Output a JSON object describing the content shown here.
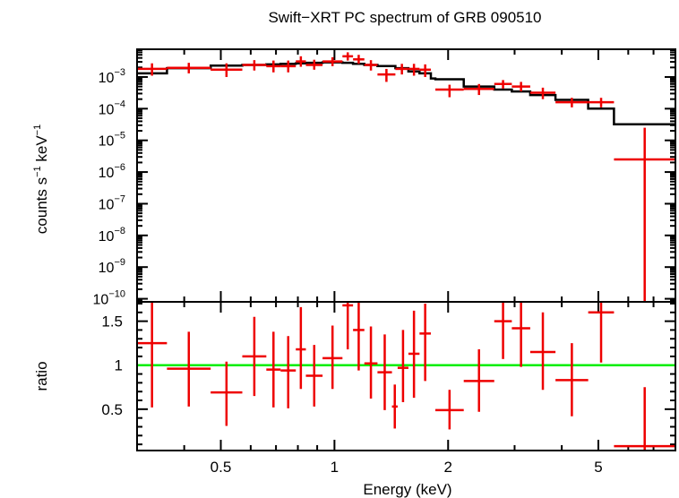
{
  "chart_data": [
    {
      "type": "line",
      "title": "Swift−XRT PC spectrum of GRB 090510",
      "ylabel_parts": [
        "counts s",
        "−1",
        " keV",
        "−1"
      ],
      "xscale": "log",
      "yscale": "log",
      "xlim": [
        0.3,
        8.0
      ],
      "ylim": [
        8e-11,
        0.0075
      ],
      "xticks_major": [
        0.5,
        1,
        2,
        5
      ],
      "xticks_minor": [
        0.3,
        0.4,
        0.6,
        0.7,
        0.8,
        0.9,
        3,
        4,
        6,
        7,
        8
      ],
      "ytick_labels": [
        {
          "value": 0.001,
          "mant": "10",
          "exp": "−3"
        },
        {
          "value": 0.0001,
          "mant": "10",
          "exp": "−4"
        },
        {
          "value": 1e-05,
          "mant": "10",
          "exp": "−5"
        },
        {
          "value": 1e-06,
          "mant": "10",
          "exp": "−6"
        },
        {
          "value": 1e-07,
          "mant": "10",
          "exp": "−7"
        },
        {
          "value": 1e-08,
          "mant": "10",
          "exp": "−8"
        },
        {
          "value": 1e-09,
          "mant": "10",
          "exp": "−9"
        },
        {
          "value": 1e-10,
          "mant": "10",
          "exp": "−10"
        }
      ],
      "data_series": {
        "name": "data",
        "color": "#ee0000",
        "points": [
          {
            "xlo": 0.3,
            "xhi": 0.36,
            "y": 0.0018,
            "ylo": 0.0011,
            "yhi": 0.0027
          },
          {
            "xlo": 0.36,
            "xhi": 0.47,
            "y": 0.00195,
            "ylo": 0.0013,
            "yhi": 0.0028
          },
          {
            "xlo": 0.47,
            "xhi": 0.57,
            "y": 0.0017,
            "ylo": 0.001,
            "yhi": 0.0027
          },
          {
            "xlo": 0.57,
            "xhi": 0.66,
            "y": 0.0024,
            "ylo": 0.0016,
            "yhi": 0.0034
          },
          {
            "xlo": 0.66,
            "xhi": 0.72,
            "y": 0.0022,
            "ylo": 0.0014,
            "yhi": 0.0033
          },
          {
            "xlo": 0.72,
            "xhi": 0.79,
            "y": 0.0022,
            "ylo": 0.0014,
            "yhi": 0.0033
          },
          {
            "xlo": 0.79,
            "xhi": 0.84,
            "y": 0.0031,
            "ylo": 0.0021,
            "yhi": 0.0045
          },
          {
            "xlo": 0.84,
            "xhi": 0.93,
            "y": 0.0024,
            "ylo": 0.0017,
            "yhi": 0.0035
          },
          {
            "xlo": 0.93,
            "xhi": 1.05,
            "y": 0.0031,
            "ylo": 0.0022,
            "yhi": 0.0042
          },
          {
            "xlo": 1.05,
            "xhi": 1.12,
            "y": 0.0045,
            "ylo": 0.0033,
            "yhi": 0.006
          },
          {
            "xlo": 1.12,
            "xhi": 1.2,
            "y": 0.0036,
            "ylo": 0.0026,
            "yhi": 0.005
          },
          {
            "xlo": 1.2,
            "xhi": 1.3,
            "y": 0.0024,
            "ylo": 0.0016,
            "yhi": 0.0034
          },
          {
            "xlo": 1.3,
            "xhi": 1.45,
            "y": 0.0012,
            "ylo": 0.0007,
            "yhi": 0.0018
          },
          {
            "xlo": 1.45,
            "xhi": 1.57,
            "y": 0.0018,
            "ylo": 0.0012,
            "yhi": 0.0026
          },
          {
            "xlo": 1.57,
            "xhi": 1.68,
            "y": 0.0018,
            "ylo": 0.0011,
            "yhi": 0.0026
          },
          {
            "xlo": 1.68,
            "xhi": 1.8,
            "y": 0.0017,
            "ylo": 0.001,
            "yhi": 0.0025
          },
          {
            "xlo": 1.85,
            "xhi": 2.2,
            "y": 0.0004,
            "ylo": 0.00023,
            "yhi": 0.00057
          },
          {
            "xlo": 2.2,
            "xhi": 2.65,
            "y": 0.00042,
            "ylo": 0.00027,
            "yhi": 0.0006
          },
          {
            "xlo": 2.65,
            "xhi": 2.95,
            "y": 0.0006,
            "ylo": 0.00043,
            "yhi": 0.0008
          },
          {
            "xlo": 2.95,
            "xhi": 3.3,
            "y": 0.0005,
            "ylo": 0.00035,
            "yhi": 0.0007
          },
          {
            "xlo": 3.3,
            "xhi": 3.85,
            "y": 0.00032,
            "ylo": 0.0002,
            "yhi": 0.00046
          },
          {
            "xlo": 3.85,
            "xhi": 4.7,
            "y": 0.00016,
            "ylo": 0.00011,
            "yhi": 0.00022
          },
          {
            "xlo": 4.7,
            "xhi": 5.5,
            "y": 0.00016,
            "ylo": 0.00011,
            "yhi": 0.00022
          },
          {
            "xlo": 5.5,
            "xhi": 8.0,
            "y": 2.5e-06,
            "ylo": 8e-11,
            "yhi": 2.5e-05
          }
        ]
      },
      "model_series": {
        "name": "model",
        "color": "#000000",
        "steps": [
          {
            "xlo": 0.3,
            "xhi": 0.36,
            "y": 0.0013
          },
          {
            "xlo": 0.36,
            "xhi": 0.47,
            "y": 0.0019
          },
          {
            "xlo": 0.47,
            "xhi": 0.57,
            "y": 0.0023
          },
          {
            "xlo": 0.57,
            "xhi": 0.66,
            "y": 0.0024
          },
          {
            "xlo": 0.66,
            "xhi": 0.72,
            "y": 0.0025
          },
          {
            "xlo": 0.72,
            "xhi": 0.79,
            "y": 0.0026
          },
          {
            "xlo": 0.79,
            "xhi": 0.84,
            "y": 0.0027
          },
          {
            "xlo": 0.84,
            "xhi": 0.93,
            "y": 0.0028
          },
          {
            "xlo": 0.93,
            "xhi": 1.05,
            "y": 0.0029
          },
          {
            "xlo": 1.05,
            "xhi": 1.12,
            "y": 0.0028
          },
          {
            "xlo": 1.12,
            "xhi": 1.2,
            "y": 0.0026
          },
          {
            "xlo": 1.2,
            "xhi": 1.3,
            "y": 0.0024
          },
          {
            "xlo": 1.3,
            "xhi": 1.45,
            "y": 0.0022
          },
          {
            "xlo": 1.45,
            "xhi": 1.57,
            "y": 0.0019
          },
          {
            "xlo": 1.57,
            "xhi": 1.68,
            "y": 0.0015
          },
          {
            "xlo": 1.68,
            "xhi": 1.8,
            "y": 0.0013
          },
          {
            "xlo": 1.8,
            "xhi": 1.85,
            "y": 0.0009
          },
          {
            "xlo": 1.85,
            "xhi": 2.2,
            "y": 0.00085
          },
          {
            "xlo": 2.2,
            "xhi": 2.65,
            "y": 0.0005
          },
          {
            "xlo": 2.65,
            "xhi": 2.95,
            "y": 0.0004
          },
          {
            "xlo": 2.95,
            "xhi": 3.3,
            "y": 0.00035
          },
          {
            "xlo": 3.3,
            "xhi": 3.85,
            "y": 0.00027
          },
          {
            "xlo": 3.85,
            "xhi": 4.7,
            "y": 0.00019
          },
          {
            "xlo": 4.7,
            "xhi": 5.5,
            "y": 0.0001
          },
          {
            "xlo": 5.5,
            "xhi": 8.0,
            "y": 3.2e-05
          }
        ]
      }
    },
    {
      "type": "scatter",
      "xlabel": "Energy (keV)",
      "ylabel": "ratio",
      "xscale": "log",
      "xlim": [
        0.3,
        8.0
      ],
      "ylim": [
        0.03,
        1.72
      ],
      "xtick_labels": [
        {
          "value": 0.5,
          "label": "0.5"
        },
        {
          "value": 1,
          "label": "1"
        },
        {
          "value": 2,
          "label": "2"
        },
        {
          "value": 5,
          "label": "5"
        }
      ],
      "xticks_minor": [
        0.3,
        0.4,
        0.6,
        0.7,
        0.8,
        0.9,
        3,
        4,
        6,
        7,
        8
      ],
      "yticks_major": [
        {
          "value": 0.5,
          "label": "0.5"
        },
        {
          "value": 1,
          "label": "1"
        },
        {
          "value": 1.5,
          "label": "1.5"
        }
      ],
      "yticks_minor": [
        0.1,
        0.2,
        0.3,
        0.4,
        0.6,
        0.7,
        0.8,
        0.9,
        1.1,
        1.2,
        1.3,
        1.4,
        1.6,
        1.7
      ],
      "reference_line": {
        "y": 1,
        "color": "#00ee00"
      },
      "ratio_series": {
        "name": "ratio",
        "color": "#ee0000",
        "points": [
          {
            "xlo": 0.3,
            "xhi": 0.36,
            "y": 1.25,
            "ylo": 0.52,
            "yhi": 1.72
          },
          {
            "xlo": 0.36,
            "xhi": 0.47,
            "y": 0.96,
            "ylo": 0.53,
            "yhi": 1.38
          },
          {
            "xlo": 0.47,
            "xhi": 0.57,
            "y": 0.69,
            "ylo": 0.31,
            "yhi": 1.04
          },
          {
            "xlo": 0.57,
            "xhi": 0.66,
            "y": 1.1,
            "ylo": 0.65,
            "yhi": 1.55
          },
          {
            "xlo": 0.66,
            "xhi": 0.72,
            "y": 0.95,
            "ylo": 0.52,
            "yhi": 1.38
          },
          {
            "xlo": 0.72,
            "xhi": 0.79,
            "y": 0.94,
            "ylo": 0.51,
            "yhi": 1.33
          },
          {
            "xlo": 0.79,
            "xhi": 0.84,
            "y": 1.18,
            "ylo": 0.73,
            "yhi": 1.66
          },
          {
            "xlo": 0.84,
            "xhi": 0.93,
            "y": 0.88,
            "ylo": 0.53,
            "yhi": 1.23
          },
          {
            "xlo": 0.93,
            "xhi": 1.05,
            "y": 1.08,
            "ylo": 0.73,
            "yhi": 1.45
          },
          {
            "xlo": 1.05,
            "xhi": 1.12,
            "y": 1.68,
            "ylo": 1.18,
            "yhi": 1.72
          },
          {
            "xlo": 1.12,
            "xhi": 1.2,
            "y": 1.4,
            "ylo": 0.94,
            "yhi": 1.72
          },
          {
            "xlo": 1.2,
            "xhi": 1.3,
            "y": 1.02,
            "ylo": 0.62,
            "yhi": 1.44
          },
          {
            "xlo": 1.3,
            "xhi": 1.42,
            "y": 0.92,
            "ylo": 0.49,
            "yhi": 1.35
          },
          {
            "xlo": 1.42,
            "xhi": 1.47,
            "y": 0.53,
            "ylo": 0.28,
            "yhi": 0.78
          },
          {
            "xlo": 1.47,
            "xhi": 1.57,
            "y": 0.97,
            "ylo": 0.58,
            "yhi": 1.4
          },
          {
            "xlo": 1.57,
            "xhi": 1.68,
            "y": 1.13,
            "ylo": 0.63,
            "yhi": 1.62
          },
          {
            "xlo": 1.68,
            "xhi": 1.8,
            "y": 1.36,
            "ylo": 0.82,
            "yhi": 1.7
          },
          {
            "xlo": 1.85,
            "xhi": 2.2,
            "y": 0.49,
            "ylo": 0.27,
            "yhi": 0.72
          },
          {
            "xlo": 2.2,
            "xhi": 2.65,
            "y": 0.82,
            "ylo": 0.47,
            "yhi": 1.18
          },
          {
            "xlo": 2.65,
            "xhi": 2.95,
            "y": 1.5,
            "ylo": 1.07,
            "yhi": 1.9
          },
          {
            "xlo": 2.95,
            "xhi": 3.3,
            "y": 1.42,
            "ylo": 0.98,
            "yhi": 1.84
          },
          {
            "xlo": 3.3,
            "xhi": 3.85,
            "y": 1.15,
            "ylo": 0.72,
            "yhi": 1.6
          },
          {
            "xlo": 3.85,
            "xhi": 4.7,
            "y": 0.83,
            "ylo": 0.42,
            "yhi": 1.25
          },
          {
            "xlo": 4.7,
            "xhi": 5.5,
            "y": 1.6,
            "ylo": 1.03,
            "yhi": 2.1
          },
          {
            "xlo": 5.5,
            "xhi": 8.0,
            "y": 0.08,
            "ylo": 0.03,
            "yhi": 0.75
          }
        ]
      }
    }
  ]
}
